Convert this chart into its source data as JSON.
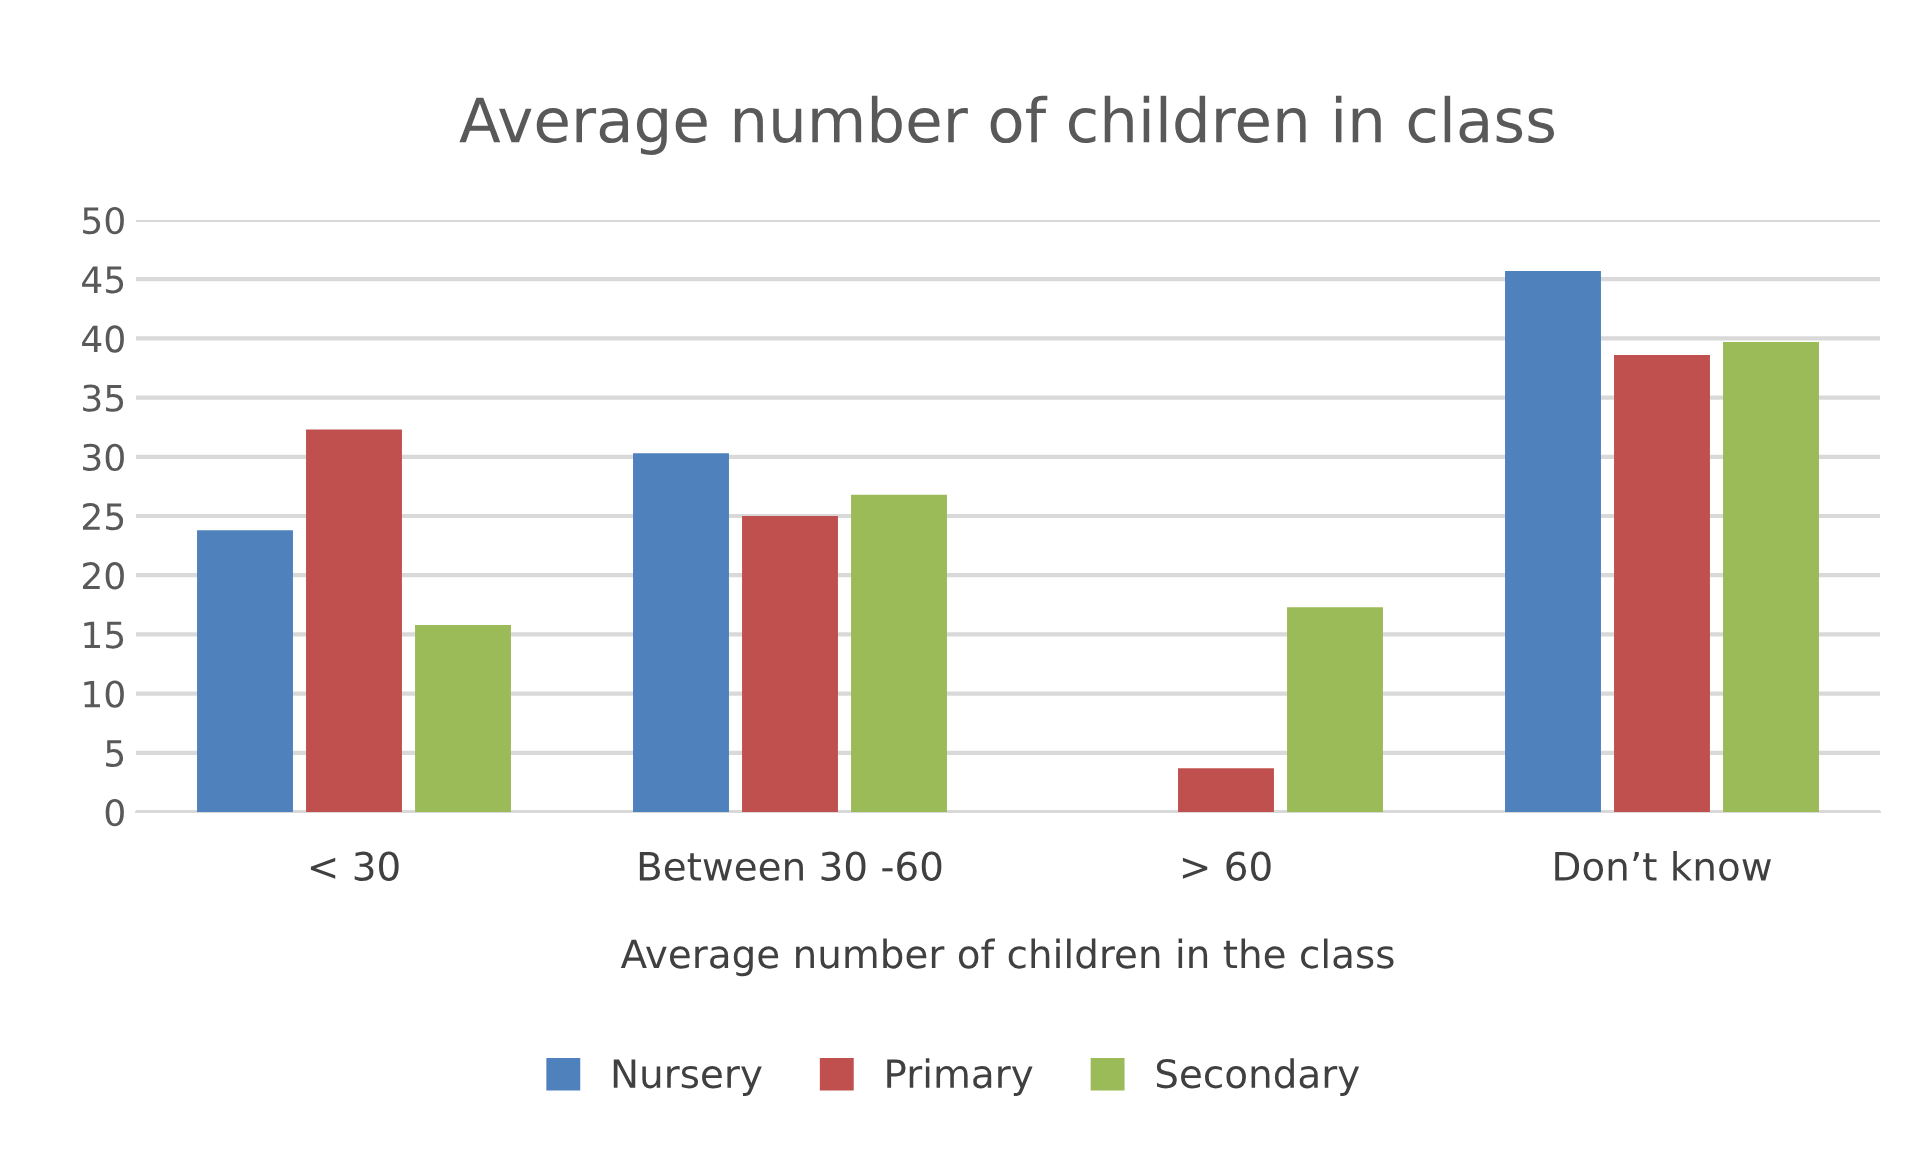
{
  "chart_data": {
    "type": "bar",
    "title": "Average number of children in class",
    "xlabel": "Average number of children in the class",
    "categories": [
      "< 30",
      "Between 30 -60",
      "> 60",
      "Don’t know"
    ],
    "series": [
      {
        "name": "Nursery",
        "color": "#4f81bd",
        "values": [
          23.8,
          30.3,
          0,
          45.7
        ]
      },
      {
        "name": "Primary",
        "color": "#c0504d",
        "values": [
          32.3,
          25.0,
          3.7,
          38.6
        ]
      },
      {
        "name": "Secondary",
        "color": "#9bbb59",
        "values": [
          15.8,
          26.8,
          17.3,
          39.7
        ]
      }
    ],
    "ylim": [
      0,
      50
    ],
    "yticks": [
      0,
      5,
      10,
      15,
      20,
      25,
      30,
      35,
      40,
      45,
      50
    ],
    "grid": "y",
    "legend": "bottom"
  }
}
